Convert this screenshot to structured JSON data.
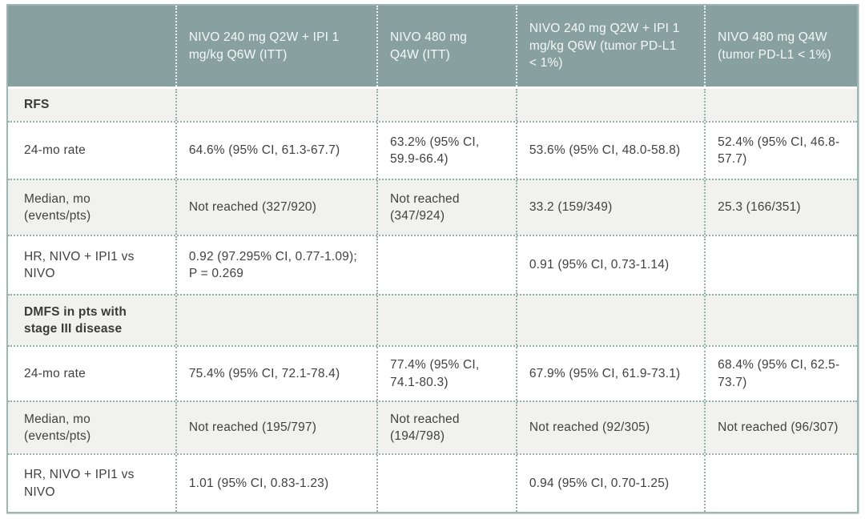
{
  "colors": {
    "header_bg": "#88a1a0",
    "header_text": "#f5f8f7",
    "row_alt_bg": "#f1f1ef",
    "row_bg": "#ffffff",
    "table_border": "#9fb5b1",
    "dotted_line": "#96aeaa",
    "body_text": "#414141",
    "section_text": "#3a3a3a"
  },
  "chart_data": {
    "type": "table",
    "columns": [
      "",
      "NIVO 240 mg Q2W + IPI 1 mg/kg Q6W (ITT)",
      "NIVO 480 mg Q4W (ITT)",
      "NIVO 240 mg Q2W + IPI 1 mg/kg Q6W (tumor PD-L1 < 1%)",
      "NIVO 480 mg Q4W (tumor PD-L1 < 1%)"
    ],
    "section_row_indices": [
      0,
      4
    ],
    "rows": [
      [
        "RFS",
        "",
        "",
        "",
        ""
      ],
      [
        "24-mo rate",
        "64.6% (95% CI, 61.3-67.7)",
        "63.2% (95% CI, 59.9-66.4)",
        "53.6% (95% CI, 48.0-58.8)",
        "52.4% (95% CI, 46.8-57.7)"
      ],
      [
        "Median, mo (events/pts)",
        "Not reached (327/920)",
        "Not reached (347/924)",
        "33.2 (159/349)",
        "25.3 (166/351)"
      ],
      [
        "HR, NIVO + IPI1 vs NIVO",
        "0.92 (97.295% CI, 0.77-1.09); P = 0.269",
        "",
        "0.91 (95% CI, 0.73-1.14)",
        ""
      ],
      [
        "DMFS in pts with stage III disease",
        "",
        "",
        "",
        ""
      ],
      [
        "24-mo rate",
        "75.4% (95% CI, 72.1-78.4)",
        "77.4% (95% CI, 74.1-80.3)",
        "67.9% (95% CI, 61.9-73.1)",
        "68.4% (95% CI, 62.5-73.7)"
      ],
      [
        "Median, mo (events/pts)",
        "Not reached (195/797)",
        "Not reached (194/798)",
        "Not reached (92/305)",
        "Not reached (96/307)"
      ],
      [
        "HR, NIVO + IPI1 vs NIVO",
        "1.01 (95% CI, 0.83-1.23)",
        "",
        "0.94 (95% CI, 0.70-1.25)",
        ""
      ]
    ]
  }
}
